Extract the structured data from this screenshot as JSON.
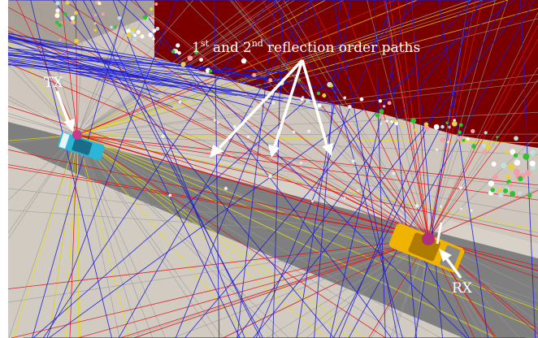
{
  "annotations": {
    "paths_label": {
      "first_num": "1",
      "first_sup": "st",
      "and_word": "and",
      "second_num": "2",
      "second_sup": "nd",
      "suffix": "reflection order paths"
    },
    "tx_label": "TX",
    "rx_label": "RX"
  },
  "colors": {
    "ground": "#cfc7bd",
    "road": "#7d7d7d",
    "building": "#7a0000",
    "building_roof": "#a49a90",
    "direct_path": "#e8e000",
    "first_order_path": "#e01515",
    "second_order_path": "#1a1ad8",
    "ground_reflection_path": "#9a9a9a",
    "tx_car": "#2bb6d8",
    "rx_car": "#f0b400",
    "antenna": "#c43c8c",
    "annotation": "#ffffff"
  }
}
